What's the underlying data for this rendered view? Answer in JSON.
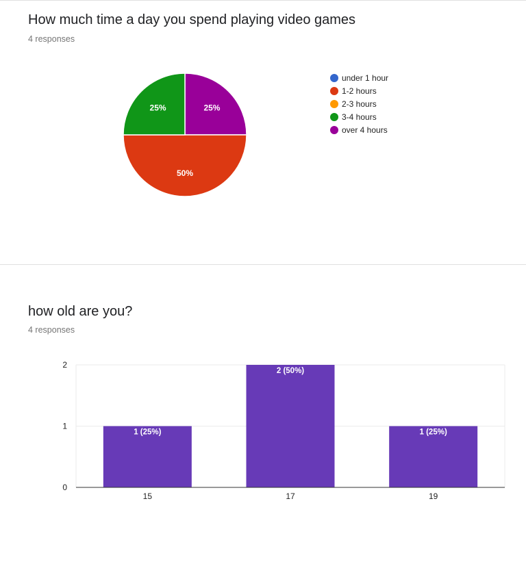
{
  "questions": [
    {
      "title": "How much time a day you spend playing video games",
      "subtitle": "4 responses"
    },
    {
      "title": "how old are you?",
      "subtitle": "4 responses"
    }
  ],
  "chart_data": [
    {
      "type": "pie",
      "title": "How much time a day you spend playing video games",
      "categories": [
        "under 1 hour",
        "1-2 hours",
        "2-3 hours",
        "3-4 hours",
        "over 4 hours"
      ],
      "values": [
        0,
        2,
        0,
        1,
        1
      ],
      "labels": [
        "",
        "50%",
        "",
        "25%",
        "25%"
      ],
      "colors": [
        "#3366cc",
        "#dc3912",
        "#ff9900",
        "#109618",
        "#990099"
      ],
      "legend": "right"
    },
    {
      "type": "bar",
      "title": "how old are you?",
      "categories": [
        "15",
        "17",
        "19"
      ],
      "values": [
        1,
        2,
        1
      ],
      "labels": [
        "1 (25%)",
        "2 (50%)",
        "1 (25%)"
      ],
      "yticks": [
        "0",
        "1",
        "2"
      ],
      "ylim": [
        0,
        2
      ],
      "color": "#673ab7",
      "grid": true
    }
  ]
}
